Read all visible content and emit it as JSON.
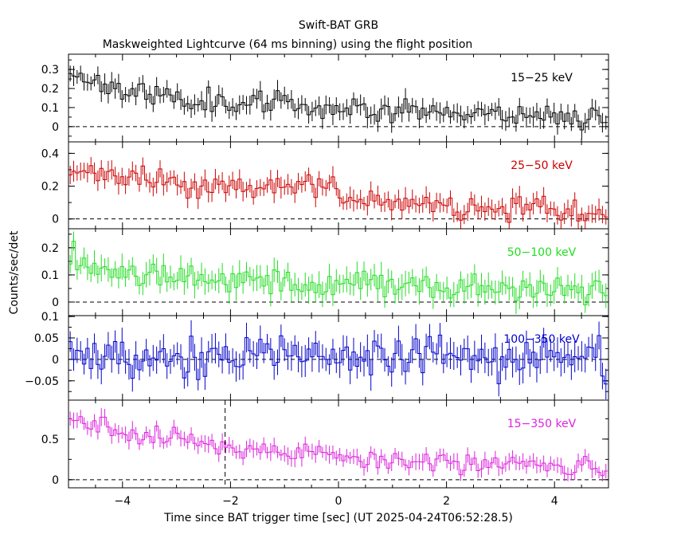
{
  "figure": {
    "title": "Swift-BAT GRB",
    "subtitle": "Maskweighted Lightcurve (64 ms binning) using the flight position",
    "ylabel": "Counts/sec/det",
    "xlabel": "Time since BAT trigger time [sec] (UT 2025-04-24T06:52:28.5)"
  },
  "chart_data": [
    {
      "type": "line",
      "band": "15-25 keV",
      "label": "15−25 keV",
      "color": "#000000",
      "xlim": [
        -5,
        5
      ],
      "ylim": [
        -0.08,
        0.38
      ],
      "yticks": [
        0,
        0.1,
        0.2,
        0.3
      ],
      "ytick_labels": [
        "0",
        "0.1",
        "0.2",
        "0.3"
      ],
      "bin_width_s": 0.064,
      "trend_t": [
        -5,
        -4.5,
        -3.5,
        -2,
        0,
        1,
        2,
        3,
        4,
        5
      ],
      "trend_y": [
        0.29,
        0.24,
        0.16,
        0.13,
        0.1,
        0.09,
        0.08,
        0.07,
        0.06,
        0.04
      ],
      "noise": 0.03,
      "err": 0.045,
      "seed": 11
    },
    {
      "type": "line",
      "band": "25-50 keV",
      "label": "25−50 keV",
      "color": "#cc0000",
      "xlim": [
        -5,
        5
      ],
      "ylim": [
        -0.06,
        0.47
      ],
      "yticks": [
        0,
        0.2,
        0.4
      ],
      "ytick_labels": [
        "0",
        "0.2",
        "0.4"
      ],
      "bin_width_s": 0.064,
      "trend_t": [
        -5,
        -4.5,
        -3,
        -1,
        -0.05,
        0.05,
        1,
        3,
        5
      ],
      "trend_y": [
        0.31,
        0.26,
        0.22,
        0.18,
        0.21,
        0.09,
        0.1,
        0.07,
        0.03
      ],
      "noise": 0.035,
      "err": 0.055,
      "seed": 23
    },
    {
      "type": "line",
      "band": "50-100 keV",
      "label": "50−100 keV",
      "color": "#22dd22",
      "xlim": [
        -5,
        5
      ],
      "ylim": [
        -0.05,
        0.27
      ],
      "yticks": [
        0,
        0.1,
        0.2
      ],
      "ytick_labels": [
        "0",
        "0.1",
        "0.2"
      ],
      "bin_width_s": 0.064,
      "trend_t": [
        -5,
        -4.5,
        -3,
        -1,
        1,
        3,
        5
      ],
      "trend_y": [
        0.17,
        0.13,
        0.1,
        0.07,
        0.06,
        0.05,
        0.04
      ],
      "noise": 0.025,
      "err": 0.04,
      "seed": 37
    },
    {
      "type": "line",
      "band": "100-350 keV",
      "label": "100−350 keV",
      "color": "#0000cc",
      "xlim": [
        -5,
        5
      ],
      "ylim": [
        -0.095,
        0.102
      ],
      "yticks": [
        -0.05,
        0,
        0.05,
        0.1
      ],
      "ytick_labels": [
        "−0.05",
        "0",
        "0.05",
        "0.1"
      ],
      "bin_width_s": 0.064,
      "trend_t": [
        -5,
        5
      ],
      "trend_y": [
        0.006,
        0.006
      ],
      "noise": 0.025,
      "err": 0.03,
      "seed": 53
    },
    {
      "type": "line",
      "band": "15-350 keV",
      "label": "15−350 keV",
      "color": "#dd22dd",
      "xlim": [
        -5,
        5
      ],
      "ylim": [
        -0.1,
        0.98
      ],
      "yticks": [
        0,
        0.5
      ],
      "ytick_labels": [
        "0",
        "0.5"
      ],
      "bin_width_s": 0.064,
      "trend_t": [
        -5,
        -4.5,
        -3,
        -2,
        -1,
        -0.05,
        0.05,
        1,
        3,
        5
      ],
      "trend_y": [
        0.78,
        0.65,
        0.5,
        0.4,
        0.34,
        0.38,
        0.25,
        0.24,
        0.19,
        0.12
      ],
      "noise": 0.06,
      "err": 0.09,
      "seed": 71,
      "marker_line_x": -2.1
    }
  ],
  "x_axis": {
    "ticks": [
      -4,
      -2,
      0,
      2,
      4
    ],
    "tick_labels": [
      "−4",
      "−2",
      "0",
      "2",
      "4"
    ]
  }
}
